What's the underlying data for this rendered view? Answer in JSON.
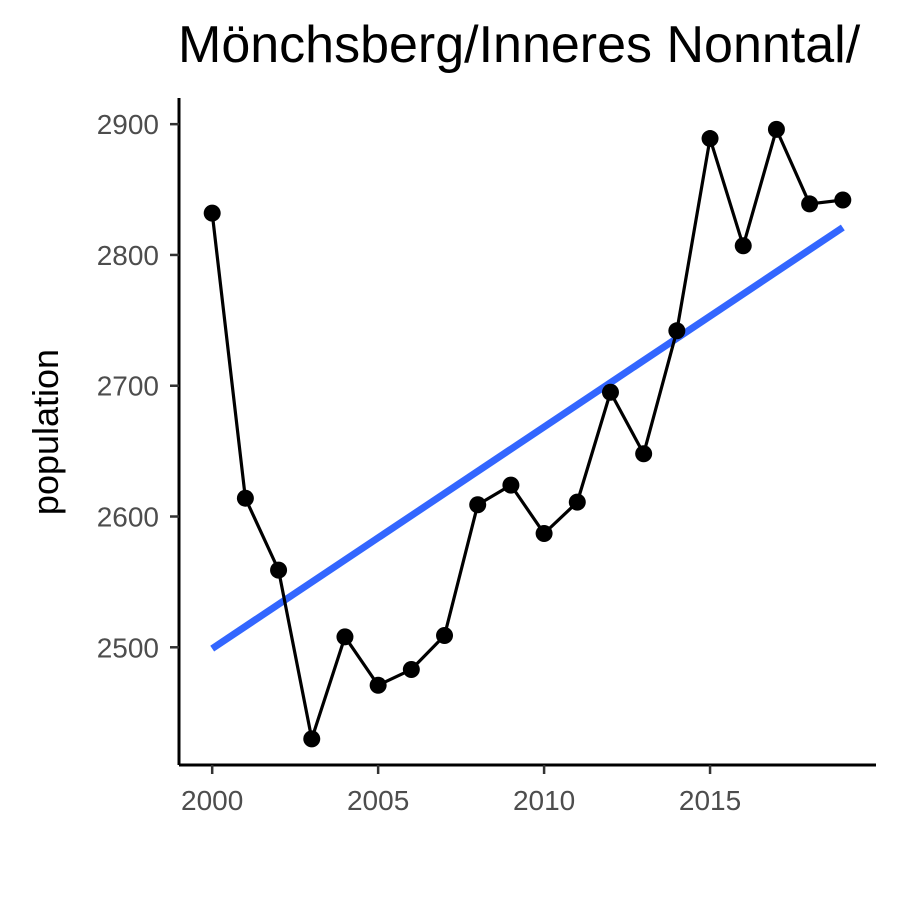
{
  "chart_data": {
    "type": "line",
    "title": "Mönchsberg/Inneres Nonntal/",
    "xlabel": "",
    "ylabel": "population",
    "xlim": [
      1999.0,
      2020.0
    ],
    "ylim": [
      2410,
      2920
    ],
    "x_ticks": [
      2000,
      2005,
      2010,
      2015
    ],
    "y_ticks": [
      2500,
      2600,
      2700,
      2800,
      2900
    ],
    "grid": false,
    "series": [
      {
        "x": [
          2000,
          2001,
          2002,
          2003,
          2004,
          2005,
          2006,
          2007,
          2008,
          2009,
          2010,
          2011,
          2012,
          2013,
          2014,
          2015,
          2016,
          2017,
          2018,
          2019
        ],
        "values": [
          2832,
          2614,
          2559,
          2430,
          2508,
          2471,
          2483,
          2509,
          2609,
          2624,
          2587,
          2611,
          2695,
          2648,
          2742,
          2889,
          2807,
          2896,
          2839,
          2842
        ],
        "color": "#000000",
        "markers": true
      }
    ],
    "trend": {
      "x": [
        2000,
        2019
      ],
      "values": [
        2499,
        2821
      ],
      "color": "#3366ff"
    }
  }
}
